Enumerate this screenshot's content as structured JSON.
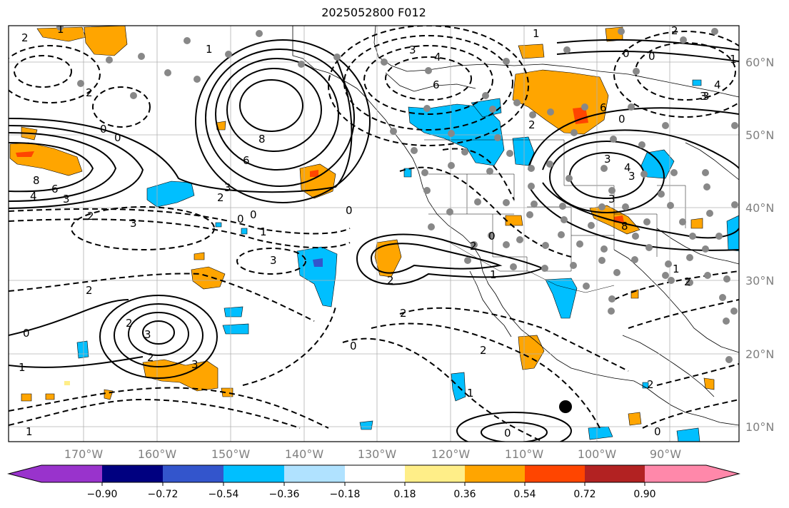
{
  "title": "2025052800 F012",
  "longitude_labels": [
    "170°W",
    "160°W",
    "150°W",
    "140°W",
    "130°W",
    "120°W",
    "110°W",
    "100°W",
    "90°W"
  ],
  "latitude_labels": [
    "60°N",
    "50°N",
    "40°N",
    "30°N",
    "20°N",
    "10°N"
  ],
  "colorbar": {
    "tick_labels": [
      "−0.90",
      "−0.72",
      "−0.54",
      "−0.36",
      "−0.18",
      "0.18",
      "0.36",
      "0.54",
      "0.72",
      "0.90"
    ],
    "colors": [
      "#9933cc",
      "#000080",
      "#3355cc",
      "#00bfff",
      "#b0e2ff",
      "#ffffff",
      "#ffee88",
      "#ffa500",
      "#ff4500",
      "#b22222",
      "#ff88aa"
    ]
  },
  "contour_labels": [
    {
      "text": "2"
    },
    {
      "text": "1"
    },
    {
      "text": "2"
    },
    {
      "text": "3"
    },
    {
      "text": "4"
    },
    {
      "text": "6"
    },
    {
      "text": "0"
    },
    {
      "text": "0"
    },
    {
      "text": "8"
    },
    {
      "text": "6"
    },
    {
      "text": "4"
    },
    {
      "text": "3"
    },
    {
      "text": "2"
    },
    {
      "text": "8"
    },
    {
      "text": "6"
    },
    {
      "text": "3"
    },
    {
      "text": "2"
    },
    {
      "text": "0"
    },
    {
      "text": "0"
    },
    {
      "text": "1"
    },
    {
      "text": "3"
    },
    {
      "text": "3"
    },
    {
      "text": "2"
    },
    {
      "text": "3"
    },
    {
      "text": "2"
    },
    {
      "text": "0"
    },
    {
      "text": "1"
    },
    {
      "text": "1"
    },
    {
      "text": "3"
    },
    {
      "text": "2"
    },
    {
      "text": "2"
    },
    {
      "text": "0"
    },
    {
      "text": "2"
    },
    {
      "text": "1"
    },
    {
      "text": "0"
    },
    {
      "text": "2"
    },
    {
      "text": "0"
    },
    {
      "text": "1"
    },
    {
      "text": "3"
    },
    {
      "text": "4"
    },
    {
      "text": "6"
    },
    {
      "text": "3"
    },
    {
      "text": "0"
    },
    {
      "text": "3"
    },
    {
      "text": "8"
    },
    {
      "text": "0"
    },
    {
      "text": "2"
    },
    {
      "text": "1"
    },
    {
      "text": "2"
    },
    {
      "text": "0"
    },
    {
      "text": "4"
    },
    {
      "text": "3"
    },
    {
      "text": "2"
    },
    {
      "text": "0"
    },
    {
      "text": "2"
    },
    {
      "text": "0"
    },
    {
      "text": "3"
    },
    {
      "text": "2"
    },
    {
      "text": "1"
    },
    {
      "text": "1"
    },
    {
      "text": "1"
    }
  ]
}
